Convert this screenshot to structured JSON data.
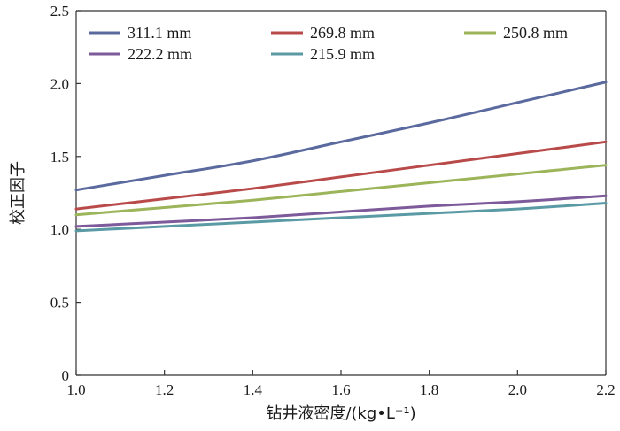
{
  "chart_data": {
    "type": "line",
    "xlabel": "钻井液密度/(kg•L⁻¹)",
    "ylabel": "校正因子",
    "xlim": [
      1.0,
      2.2
    ],
    "ylim": [
      0,
      2.5
    ],
    "xticks": [
      "1.0",
      "1.2",
      "1.4",
      "1.6",
      "1.8",
      "2.0",
      "2.2"
    ],
    "yticks": [
      "0",
      "0.5",
      "1.0",
      "1.5",
      "2.0",
      "2.5"
    ],
    "grid": false,
    "legend_position": "top",
    "x": [
      1.0,
      1.2,
      1.4,
      1.6,
      1.8,
      2.0,
      2.2
    ],
    "series": [
      {
        "name": "311.1 mm",
        "color": "#5b6a9e",
        "values": [
          1.27,
          1.37,
          1.47,
          1.6,
          1.73,
          1.87,
          2.01
        ]
      },
      {
        "name": "269.8 mm",
        "color": "#b94a4a",
        "values": [
          1.14,
          1.21,
          1.28,
          1.36,
          1.44,
          1.52,
          1.6
        ]
      },
      {
        "name": "250.8 mm",
        "color": "#9cb45a",
        "values": [
          1.1,
          1.15,
          1.2,
          1.26,
          1.32,
          1.38,
          1.44
        ]
      },
      {
        "name": "222.2 mm",
        "color": "#7d5a9a",
        "values": [
          1.02,
          1.05,
          1.08,
          1.12,
          1.16,
          1.19,
          1.23
        ]
      },
      {
        "name": "215.9 mm",
        "color": "#5a9aa5",
        "values": [
          0.99,
          1.02,
          1.05,
          1.08,
          1.11,
          1.14,
          1.18
        ]
      }
    ]
  }
}
